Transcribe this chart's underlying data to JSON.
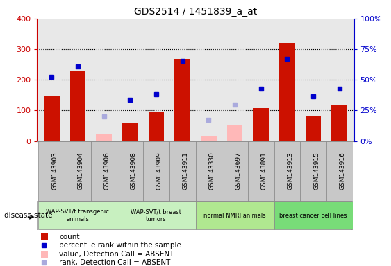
{
  "title": "GDS2514 / 1451839_a_at",
  "sample_labels": [
    "GSM143903",
    "GSM143904",
    "GSM143906",
    "GSM143908",
    "GSM143909",
    "GSM143911",
    "GSM143330",
    "GSM143697",
    "GSM143891",
    "GSM143913",
    "GSM143915",
    "GSM143916"
  ],
  "count_values": [
    148,
    230,
    null,
    60,
    97,
    268,
    null,
    null,
    108,
    320,
    80,
    118
  ],
  "count_absent": [
    null,
    null,
    22,
    null,
    null,
    null,
    17,
    50,
    null,
    null,
    null,
    null
  ],
  "rank_values_pct": [
    52.5,
    60.75,
    null,
    33.75,
    38,
    65.25,
    null,
    null,
    43,
    67,
    36.75,
    43
  ],
  "rank_absent_pct": [
    null,
    null,
    20,
    null,
    null,
    null,
    17.5,
    29.5,
    null,
    null,
    null,
    null
  ],
  "groups": [
    {
      "label": "WAP-SVT/t transgenic\nanimals",
      "start": 0,
      "end": 2,
      "color": "#c8f0c0"
    },
    {
      "label": "WAP-SVT/t breast\ntumors",
      "start": 3,
      "end": 5,
      "color": "#c8f0c0"
    },
    {
      "label": "normal NMRI animals",
      "start": 6,
      "end": 8,
      "color": "#b0e890"
    },
    {
      "label": "breast cancer cell lines",
      "start": 9,
      "end": 11,
      "color": "#78dc78"
    }
  ],
  "ylim_left": [
    0,
    400
  ],
  "ylim_right": [
    0,
    100
  ],
  "left_ticks": [
    0,
    100,
    200,
    300,
    400
  ],
  "right_ticks": [
    0,
    25,
    50,
    75,
    100
  ],
  "right_tick_labels": [
    "0%",
    "25%",
    "50%",
    "75%",
    "100%"
  ],
  "left_tick_color": "#cc0000",
  "right_tick_color": "#0000cc",
  "bar_color": "#cc1100",
  "bar_absent_color": "#ffb8b8",
  "dot_color": "#0000cc",
  "dot_absent_color": "#aaaadd",
  "plot_bg_color": "#e8e8e8",
  "sample_box_color": "#c8c8c8",
  "grid_color": "#000000",
  "legend_items": [
    {
      "label": "count",
      "type": "bar",
      "color": "#cc1100"
    },
    {
      "label": "percentile rank within the sample",
      "type": "dot",
      "color": "#0000cc"
    },
    {
      "label": "value, Detection Call = ABSENT",
      "type": "bar",
      "color": "#ffb8b8"
    },
    {
      "label": "rank, Detection Call = ABSENT",
      "type": "dot",
      "color": "#aaaadd"
    }
  ]
}
